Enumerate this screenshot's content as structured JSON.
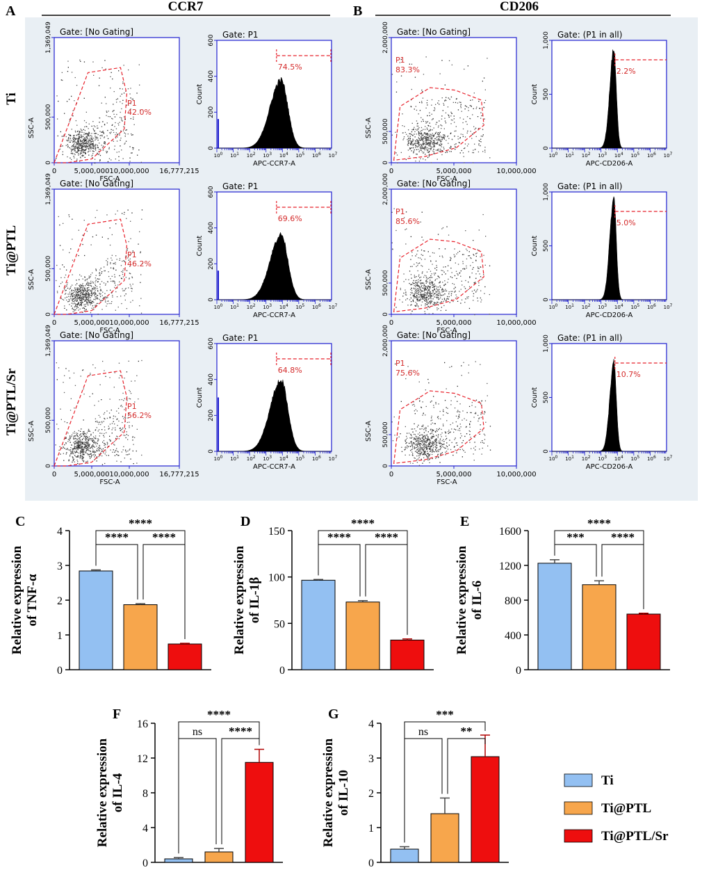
{
  "panel_letters": {
    "A": "A",
    "B": "B",
    "C": "C",
    "D": "D",
    "E": "E",
    "F": "F",
    "G": "G"
  },
  "flow": {
    "section_titles": {
      "ccr7": "CCR7",
      "cd206": "CD206"
    },
    "row_labels": [
      "Ti",
      "Ti@PTL",
      "Ti@PTL/Sr"
    ],
    "colors": {
      "background": "#e9eff4",
      "axis": "#1f1fd0",
      "gate": "#e8202a",
      "gate_text": "#d42a2a",
      "dots": "#555555"
    },
    "ccr7": {
      "scatter": {
        "gate_title": "Gate: [No Gating]",
        "xlabel": "FSC-A",
        "ylabel": "SSC-A",
        "xticks": [
          "0",
          "5,000,000",
          "10,000,000",
          "16,777,215"
        ],
        "yticks": [
          "0",
          "500,000",
          "1,369,049"
        ],
        "gate_name": "P1",
        "gate_percents": [
          "42.0%",
          "46.2%",
          "56.2%"
        ]
      },
      "histogram": {
        "gate_title": "Gate: P1",
        "xlabel": "APC-CCR7-A",
        "ylabel": "Count",
        "yticks": [
          "0",
          "200",
          "400",
          "600"
        ],
        "xticks": [
          "10^0",
          "10^1",
          "10^2",
          "10^3",
          "10^4",
          "10^5",
          "10^6",
          "10^7"
        ],
        "positive_percents": [
          "74.5%",
          "69.6%",
          "64.8%"
        ]
      }
    },
    "cd206": {
      "scatter": {
        "gate_title": "Gate: [No Gating]",
        "xlabel": "FSC-A",
        "ylabel": "SSC-A",
        "xticks": [
          "0",
          "5,000,000",
          "10,000,000"
        ],
        "yticks": [
          "0",
          "500,000",
          "2,000,000"
        ],
        "gate_name": "P1",
        "gate_percents": [
          "83.3%",
          "85.6%",
          "75.6%"
        ]
      },
      "histogram": {
        "gate_title": "Gate: (P1 in all)",
        "xlabel": "APC-CD206-A",
        "ylabel": "Count",
        "yticks": [
          "0",
          "500",
          "1,000"
        ],
        "xticks": [
          "10^0",
          "10^1",
          "10^2",
          "10^3",
          "10^4",
          "10^5",
          "10^6",
          "10^7"
        ],
        "positive_percents": [
          "2.2%",
          "5.0%",
          "10.7%"
        ]
      }
    }
  },
  "chart_data": [
    {
      "panel": "C",
      "type": "bar",
      "categories": [
        "Ti",
        "Ti@PTL",
        "Ti@PTL/Sr"
      ],
      "values": [
        2.84,
        1.87,
        0.74
      ],
      "errors": [
        0.03,
        0.03,
        0.02
      ],
      "ylim": [
        0,
        4
      ],
      "yticks": [
        "0",
        "1",
        "2",
        "3",
        "4"
      ],
      "ylabel": [
        "Relative expression",
        "of TNF-α"
      ],
      "significance": [
        {
          "from": 0,
          "to": 2,
          "label": "****",
          "level": 2
        },
        {
          "from": 0,
          "to": 1,
          "label": "****",
          "level": 1
        },
        {
          "from": 1,
          "to": 2,
          "label": "****",
          "level": 1
        }
      ]
    },
    {
      "panel": "D",
      "type": "bar",
      "categories": [
        "Ti",
        "Ti@PTL",
        "Ti@PTL/Sr"
      ],
      "values": [
        96.5,
        73,
        32
      ],
      "errors": [
        0.8,
        1.5,
        1.2
      ],
      "ylim": [
        0,
        150
      ],
      "yticks": [
        "0",
        "50",
        "100",
        "150"
      ],
      "ylabel": [
        "Relative expression",
        "of IL-1β"
      ],
      "significance": [
        {
          "from": 0,
          "to": 2,
          "label": "****",
          "level": 2
        },
        {
          "from": 0,
          "to": 1,
          "label": "****",
          "level": 1
        },
        {
          "from": 1,
          "to": 2,
          "label": "****",
          "level": 1
        }
      ]
    },
    {
      "panel": "E",
      "type": "bar",
      "categories": [
        "Ti",
        "Ti@PTL",
        "Ti@PTL/Sr"
      ],
      "values": [
        1225,
        978,
        640
      ],
      "errors": [
        40,
        45,
        10
      ],
      "ylim": [
        0,
        1600
      ],
      "yticks": [
        "0",
        "400",
        "800",
        "1200",
        "1600"
      ],
      "ylabel": [
        "Relative expression",
        "of IL-6"
      ],
      "significance": [
        {
          "from": 0,
          "to": 2,
          "label": "****",
          "level": 2
        },
        {
          "from": 0,
          "to": 1,
          "label": "***",
          "level": 1
        },
        {
          "from": 1,
          "to": 2,
          "label": "****",
          "level": 1
        }
      ]
    },
    {
      "panel": "F",
      "type": "bar",
      "categories": [
        "Ti",
        "Ti@PTL",
        "Ti@PTL/Sr"
      ],
      "values": [
        0.4,
        1.2,
        11.5
      ],
      "errors": [
        0.15,
        0.4,
        1.5
      ],
      "ylim": [
        0,
        16
      ],
      "yticks": [
        "0",
        "4",
        "8",
        "12",
        "16"
      ],
      "ylabel": [
        "Relative expression",
        "of IL-4"
      ],
      "significance": [
        {
          "from": 0,
          "to": 2,
          "label": "****",
          "level": 2
        },
        {
          "from": 0,
          "to": 1,
          "label": "ns",
          "level": 1
        },
        {
          "from": 1,
          "to": 2,
          "label": "****",
          "level": 1
        }
      ]
    },
    {
      "panel": "G",
      "type": "bar",
      "categories": [
        "Ti",
        "Ti@PTL",
        "Ti@PTL/Sr"
      ],
      "values": [
        0.38,
        1.4,
        3.04
      ],
      "errors": [
        0.07,
        0.45,
        0.62
      ],
      "ylim": [
        0,
        4
      ],
      "yticks": [
        "0",
        "1",
        "2",
        "3",
        "4"
      ],
      "ylabel": [
        "Relative expression",
        "of IL-10"
      ],
      "significance": [
        {
          "from": 0,
          "to": 2,
          "label": "***",
          "level": 2
        },
        {
          "from": 0,
          "to": 1,
          "label": "ns",
          "level": 1
        },
        {
          "from": 1,
          "to": 2,
          "label": "**",
          "level": 1
        }
      ]
    }
  ],
  "legend": {
    "items": [
      {
        "label": "Ti",
        "color": "#93c0f2"
      },
      {
        "label": "Ti@PTL",
        "color": "#f7a64c"
      },
      {
        "label": "Ti@PTL/Sr",
        "color": "#ee0e0e"
      }
    ]
  }
}
